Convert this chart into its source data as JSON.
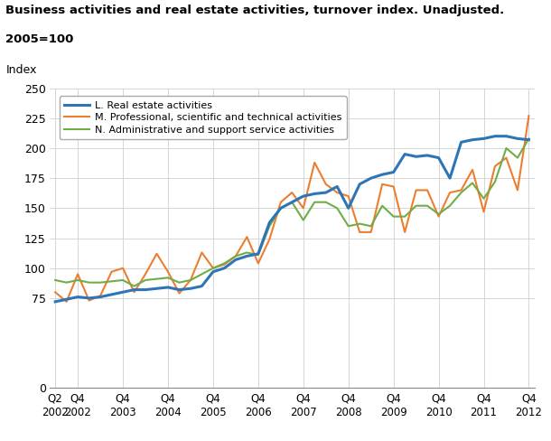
{
  "title_line1": "Business activities and real estate activities, turnover index. Unadjusted.",
  "title_line2": "2005=100",
  "ylabel": "Index",
  "colors": {
    "L": "#2E75B6",
    "M": "#ED7D31",
    "N": "#70AD47"
  },
  "legend_labels": [
    "L. Real estate activities",
    "M. Professional, scientific and technical activities",
    "N. Administrative and support service activities"
  ],
  "ylim": [
    0,
    250
  ],
  "yticks": [
    0,
    75,
    100,
    125,
    150,
    175,
    200,
    225,
    250
  ],
  "L": [
    72,
    74,
    76,
    75,
    76,
    78,
    80,
    82,
    82,
    83,
    84,
    82,
    83,
    85,
    97,
    100,
    107,
    110,
    112,
    138,
    150,
    155,
    160,
    162,
    163,
    168,
    150,
    170,
    175,
    178,
    180,
    195,
    193,
    194,
    192,
    175,
    205,
    207,
    208,
    210,
    210,
    208,
    207
  ],
  "M": [
    80,
    72,
    95,
    73,
    77,
    97,
    100,
    80,
    95,
    112,
    97,
    79,
    90,
    113,
    100,
    103,
    110,
    126,
    104,
    124,
    155,
    163,
    150,
    188,
    170,
    163,
    160,
    130,
    130,
    170,
    168,
    130,
    165,
    165,
    143,
    163,
    165,
    182,
    147,
    185,
    192,
    165,
    227
  ],
  "N": [
    90,
    88,
    90,
    88,
    88,
    89,
    90,
    85,
    90,
    91,
    92,
    88,
    90,
    95,
    100,
    104,
    110,
    113,
    111,
    135,
    150,
    155,
    140,
    155,
    155,
    150,
    135,
    137,
    135,
    152,
    143,
    143,
    152,
    152,
    145,
    152,
    163,
    171,
    158,
    172,
    200,
    192,
    208
  ],
  "xtick_positions": [
    0,
    2,
    6,
    10,
    14,
    18,
    22,
    26,
    30,
    34,
    38,
    42
  ],
  "xtick_labels": [
    "Q2\n2002",
    "Q4\n2002",
    "Q4\n2003",
    "Q4\n2004",
    "Q4\n2005",
    "Q4\n2006",
    "Q4\n2007",
    "Q4\n2008",
    "Q4\n2009",
    "Q4\n2010",
    "Q4\n2011",
    "Q4\n2012"
  ],
  "background_color": "#ffffff",
  "grid_color": "#d0d0d0"
}
